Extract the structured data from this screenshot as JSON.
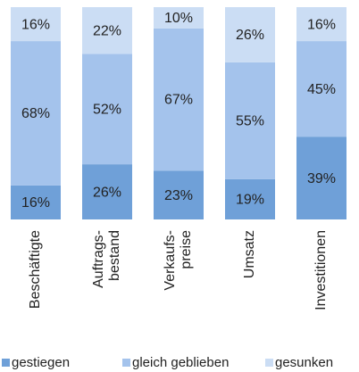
{
  "chart_data": {
    "type": "stacked_bar",
    "categories": [
      "Beschäftigte",
      "Auftrags-\nbestand",
      "Verkaufs-\npreise",
      "Umsatz",
      "Investitionen"
    ],
    "ylim": [
      0,
      100
    ],
    "series": [
      {
        "name": "gestiegen",
        "color": "#6fa0d8",
        "values": [
          16,
          26,
          23,
          19,
          39
        ],
        "value_labels": [
          "16%",
          "26%",
          "23%",
          "19%",
          "39%"
        ]
      },
      {
        "name": "gleich geblieben",
        "color": "#a4c3ec",
        "values": [
          68,
          52,
          67,
          55,
          45
        ],
        "value_labels": [
          "68%",
          "52%",
          "67%",
          "55%",
          "45%"
        ]
      },
      {
        "name": "gesunken",
        "color": "#cbddf4",
        "values": [
          16,
          22,
          10,
          26,
          16
        ],
        "value_labels": [
          "16%",
          "22%",
          "10%",
          "26%",
          "16%"
        ]
      }
    ]
  }
}
